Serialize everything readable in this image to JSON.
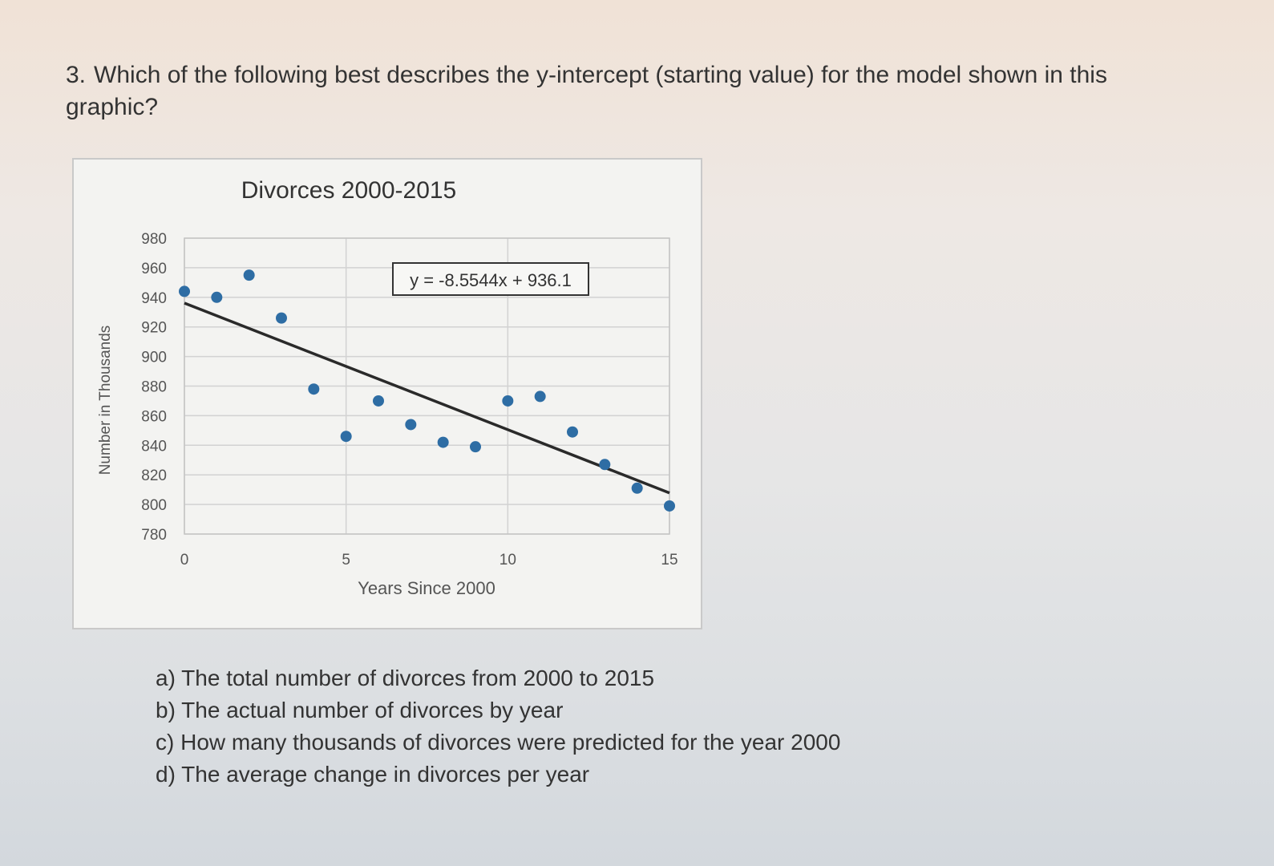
{
  "question": {
    "number": "3.",
    "text": "Which of the following best describes the y-intercept (starting value) for the model shown in this graphic?"
  },
  "options": [
    {
      "text": "a) The total number of divorces from 2000 to 2015"
    },
    {
      "text": "b) The actual number of divorces by year"
    },
    {
      "text": "c) How many thousands of divorces were predicted for the year 2000"
    },
    {
      "text": "d) The average change in divorces per year"
    }
  ],
  "chart_data": {
    "type": "scatter",
    "title": "Divorces 2000-2015",
    "xlabel": "Years Since 2000",
    "ylabel": "Number in Thousands",
    "xlim": [
      0,
      15
    ],
    "ylim": [
      780,
      980
    ],
    "xticks": [
      0,
      5,
      10,
      15
    ],
    "yticks": [
      780,
      800,
      820,
      840,
      860,
      880,
      900,
      920,
      940,
      960,
      980
    ],
    "grid": true,
    "x": [
      0,
      1,
      2,
      3,
      4,
      5,
      6,
      7,
      8,
      9,
      10,
      11,
      12,
      13,
      14,
      15
    ],
    "y": [
      944,
      940,
      955,
      926,
      878,
      846,
      870,
      854,
      842,
      839,
      870,
      873,
      849,
      827,
      811,
      799
    ],
    "trendline": {
      "slope": -8.5544,
      "intercept": 936.1,
      "equation": "y = -8.5544x + 936.1"
    },
    "point_color": "#2e6da4",
    "line_color": "#2a2a2a"
  }
}
